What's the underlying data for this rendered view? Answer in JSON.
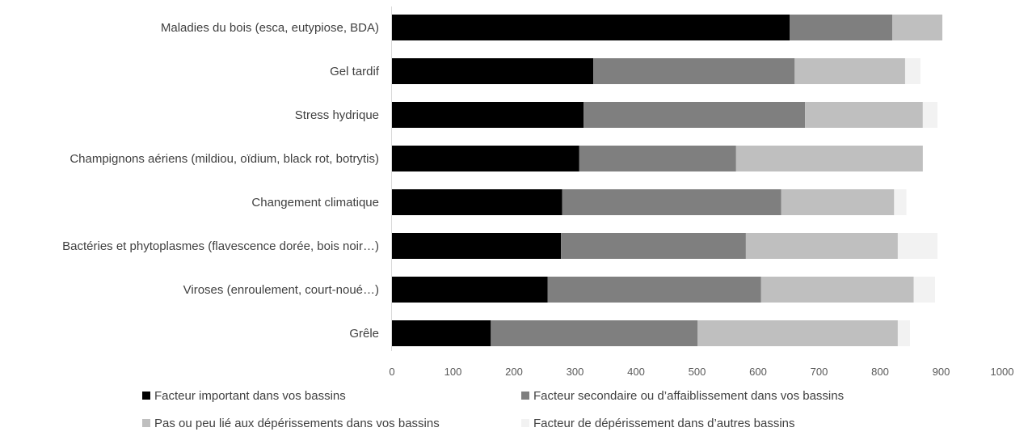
{
  "chart_data": {
    "type": "bar",
    "orientation": "horizontal",
    "stacked": true,
    "title": "",
    "xlabel": "",
    "ylabel": "",
    "xlim": [
      0,
      1000
    ],
    "x_ticks": [
      0,
      100,
      200,
      300,
      400,
      500,
      600,
      700,
      800,
      900,
      1000
    ],
    "grid": false,
    "legend_position": "bottom",
    "categories": [
      "Maladies du bois (esca, eutypiose, BDA)",
      "Gel tardif",
      "Stress hydrique",
      "Champignons aériens (mildiou, oïdium, black rot, botrytis)",
      "Changement climatique",
      "Bactéries et phytoplasmes (flavescence dorée, bois noir…)",
      "Viroses (enroulement, court-noué…)",
      "Grêle"
    ],
    "series": [
      {
        "name": "Facteur important dans vos bassins",
        "color": "#000000",
        "values": [
          652,
          330,
          314,
          307,
          279,
          277,
          255,
          162
        ]
      },
      {
        "name": "Facteur secondaire ou d’affaiblissement dans vos bassins",
        "color": "#7f7f7f",
        "values": [
          168,
          330,
          363,
          257,
          359,
          303,
          350,
          339
        ]
      },
      {
        "name": "Pas ou peu lié aux dépérissements dans vos bassins",
        "color": "#bfbfbf",
        "values": [
          82,
          181,
          193,
          306,
          185,
          249,
          250,
          328
        ]
      },
      {
        "name": "Facteur de dépérissement dans d’autres bassins",
        "color": "#f2f2f2",
        "values": [
          0,
          25,
          24,
          0,
          20,
          65,
          35,
          20
        ]
      }
    ]
  }
}
